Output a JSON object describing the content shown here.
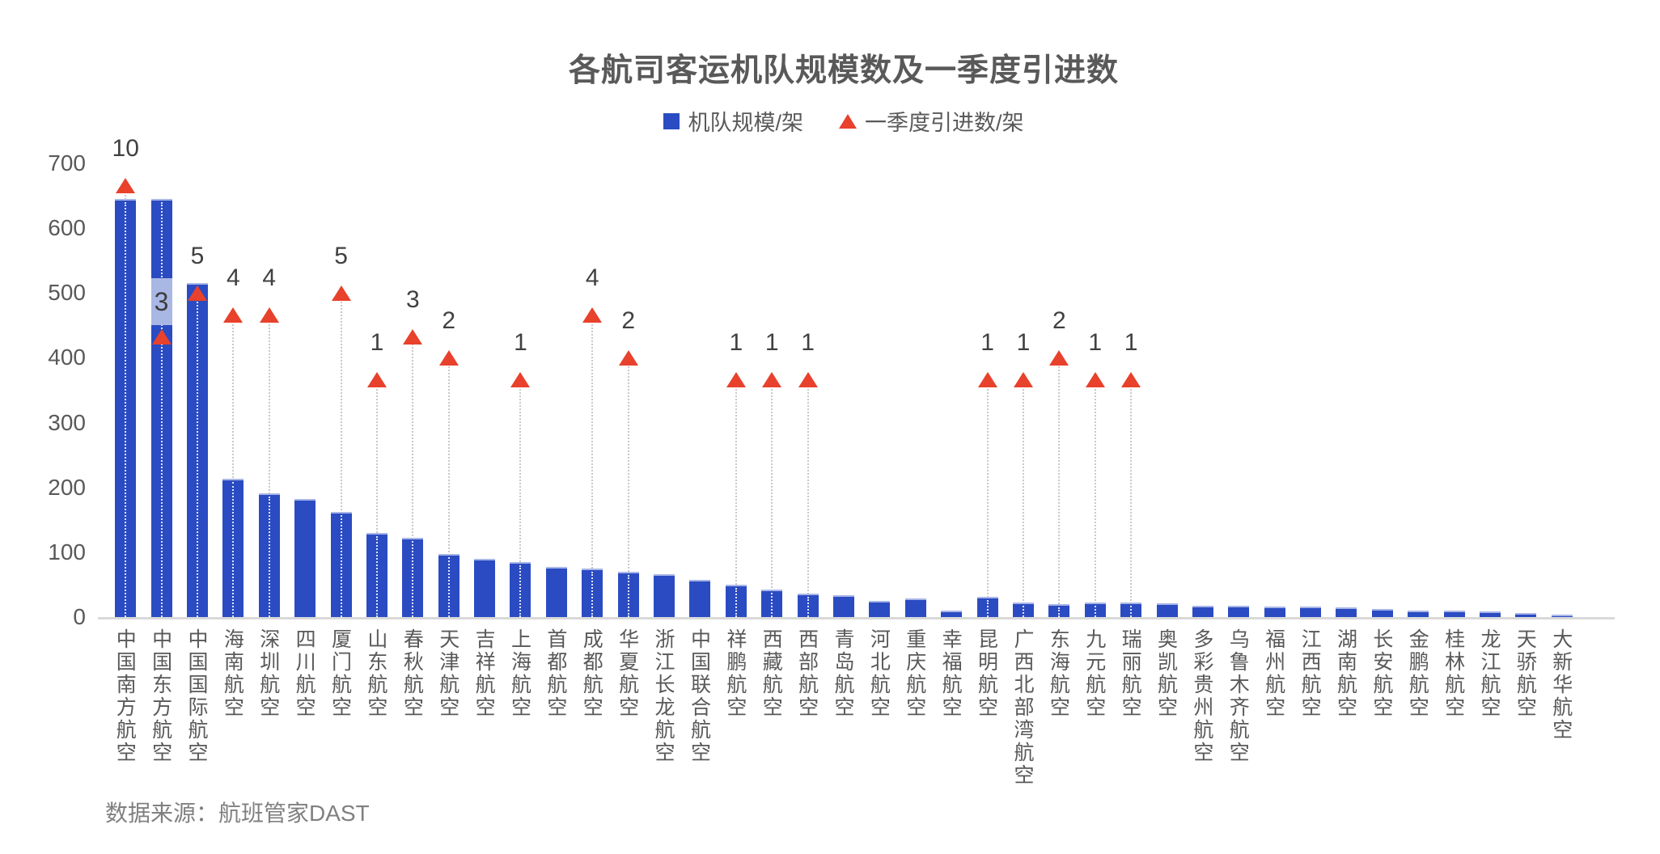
{
  "title": "各航司客运机队规模数及一季度引进数",
  "legend": {
    "fleet_label": "机队规模/架",
    "intro_label": "一季度引进数/架"
  },
  "colors": {
    "bar": "#2b4bc3",
    "bar_top_edge": "#a9b6e6",
    "triangle": "#e8412c",
    "highlight_band": "#a9b7e4",
    "axis_text": "#595959",
    "label_text": "#404040",
    "baseline": "#d9d9d9"
  },
  "source": "数据来源：航班管家DAST",
  "y_axis": {
    "min": 0,
    "max": 700,
    "step": 100,
    "ticks": [
      0,
      100,
      200,
      300,
      400,
      500,
      600,
      700
    ]
  },
  "chart_data": {
    "type": "bar",
    "title": "各航司客运机队规模数及一季度引进数",
    "ylim": [
      0,
      700
    ],
    "grid": false,
    "legend_position": "top",
    "categories": [
      "中国南方航空",
      "中国东方航空",
      "中国国际航空",
      "海南航空",
      "深圳航空",
      "四川航空",
      "厦门航空",
      "山东航空",
      "春秋航空",
      "天津航空",
      "吉祥航空",
      "上海航空",
      "首都航空",
      "成都航空",
      "华夏航空",
      "浙江长龙航空",
      "中国联合航空",
      "祥鹏航空",
      "西藏航空",
      "西部航空",
      "青岛航空",
      "河北航空",
      "重庆航空",
      "幸福航空",
      "昆明航空",
      "广西北部湾航空",
      "东海航空",
      "九元航空",
      "瑞丽航空",
      "奥凯航空",
      "多彩贵州航空",
      "乌鲁木齐航空",
      "福州航空",
      "江西航空",
      "湖南航空",
      "长安航空",
      "金鹏航空",
      "桂林航空",
      "龙江航空",
      "天骄航空",
      "大新华航空"
    ],
    "series": [
      {
        "name": "机队规模/架",
        "type": "bar",
        "color": "#2b4bc3",
        "values": [
          645,
          645,
          515,
          214,
          191,
          182,
          162,
          130,
          122,
          97,
          90,
          85,
          77,
          75,
          70,
          66,
          57,
          50,
          42,
          36,
          34,
          25,
          29,
          10,
          31,
          22,
          20,
          23,
          23,
          21,
          18,
          17,
          16,
          16,
          15,
          13,
          10,
          10,
          9,
          6,
          2
        ]
      },
      {
        "name": "一季度引进数/架",
        "type": "scatter",
        "marker": "triangle",
        "color": "#e8412c",
        "values": [
          10,
          3,
          5,
          4,
          4,
          null,
          5,
          1,
          3,
          2,
          null,
          1,
          null,
          4,
          2,
          null,
          null,
          1,
          1,
          1,
          null,
          null,
          null,
          null,
          1,
          1,
          2,
          1,
          1,
          null,
          null,
          null,
          null,
          null,
          null,
          null,
          null,
          null,
          null,
          null,
          null
        ]
      }
    ],
    "highlight": {
      "category": "中国东方航空",
      "index": 1,
      "value": 3
    }
  }
}
